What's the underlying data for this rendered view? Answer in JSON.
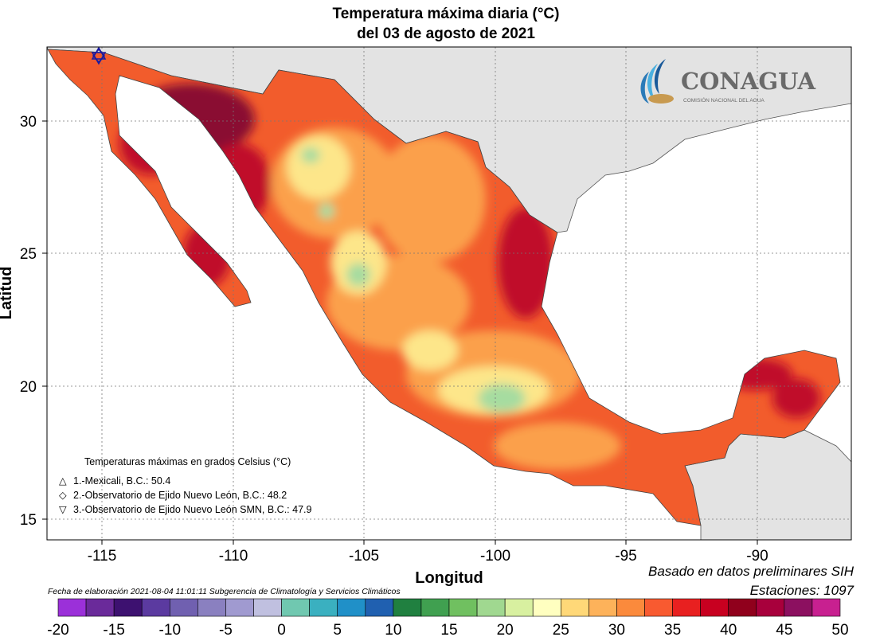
{
  "title": {
    "line1": "Temperatura máxima diaria (°C)",
    "line2": "del 03 de agosto de 2021"
  },
  "axes": {
    "xlabel": "Longitud",
    "ylabel": "Latitud",
    "x_ticks": [
      "-115",
      "-110",
      "-105",
      "-100",
      "-95",
      "-90"
    ],
    "y_ticks": [
      "30",
      "25",
      "20",
      "15"
    ]
  },
  "logo": {
    "name": "CONAGUA",
    "subtitle": "COMISIÓN NACIONAL DEL AGUA"
  },
  "station_legend": {
    "title": "Temperaturas máximas en grados Celsius (°C)",
    "items": [
      {
        "symbol": "△",
        "text": "1.-Mexicali, B.C.: 50.4"
      },
      {
        "symbol": "◇",
        "text": "2.-Observatorio de Ejido Nuevo León, B.C.: 48.2"
      },
      {
        "symbol": "▽",
        "text": "3.-Observatorio de Ejido Nuevo León SMN, B.C.: 47.9"
      }
    ]
  },
  "footer": {
    "based_on": "Basado en datos preliminares SIH",
    "stations": "Estaciones:  1097",
    "fecha": "Fecha de elaboración 2021-08-04 11:01:11 Subgerencia de Climatología y Servicios Climáticos"
  },
  "colorbar": {
    "labels": [
      "-20",
      "-15",
      "-10",
      "-5",
      "0",
      "5",
      "10",
      "15",
      "20",
      "25",
      "30",
      "35",
      "40",
      "45",
      "50"
    ],
    "colors": [
      "#9b30d9",
      "#6a2a9a",
      "#3d1170",
      "#5b3aa0",
      "#7060b0",
      "#8a80c0",
      "#a09ad0",
      "#c0c0e0",
      "#70c8b0",
      "#3ab0c0",
      "#2090c8",
      "#2060b0",
      "#208040",
      "#40a050",
      "#70c060",
      "#a0d890",
      "#d8f0a0",
      "#ffffc0",
      "#ffd878",
      "#fdb25a",
      "#fb8a3c",
      "#f85a30",
      "#e82020",
      "#c80020",
      "#90001c",
      "#a8003c",
      "#8c1060",
      "#c82090"
    ]
  },
  "colors": {
    "ocean": "#ffffff",
    "land_outside": "#e3e3e3",
    "hot": "#f25c2c",
    "very_hot": "#c0102a",
    "extreme": "#8a0a30",
    "warm": "#fba04c",
    "mild": "#fde68a",
    "cool": "#a6dca0"
  }
}
